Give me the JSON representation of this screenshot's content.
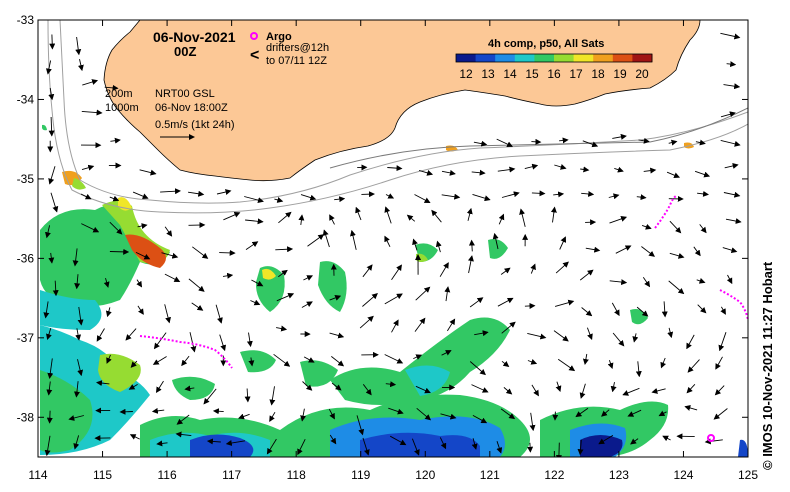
{
  "title": {
    "date": "06-Nov-2021",
    "time": "00Z"
  },
  "legend": {
    "argo_label": "Argo",
    "argo_color": "#ff00ff",
    "drifters_line1": "drifters@12h",
    "drifters_line2": "to 07/11 12Z",
    "drifter_color": "#ff00ff"
  },
  "colorbar": {
    "title": "4h comp, p50, All Sats",
    "ticks": [
      "12",
      "13",
      "14",
      "15",
      "16",
      "17",
      "18",
      "19",
      "20"
    ],
    "colors": [
      "#0a1a8c",
      "#1446c8",
      "#1e8ce6",
      "#1ec8c8",
      "#32c864",
      "#96dc32",
      "#f0e628",
      "#f0a01e",
      "#dc5014",
      "#a01414"
    ]
  },
  "contours": {
    "shallow": "200m",
    "deep": "1000m"
  },
  "product": {
    "name": "NRT00 GSL",
    "datetime": "06-Nov 18:00Z",
    "scale": "0.5m/s (1kt 24h)"
  },
  "axes": {
    "lon_ticks": [
      "114",
      "115",
      "116",
      "117",
      "118",
      "119",
      "120",
      "121",
      "122",
      "123",
      "124",
      "125"
    ],
    "lat_ticks": [
      "-33",
      "-34",
      "-35",
      "-36",
      "-37",
      "-38"
    ],
    "lon_range": [
      114,
      125
    ],
    "lat_range": [
      -33,
      -38.5
    ]
  },
  "colors": {
    "land": "#fcc896",
    "bathymetry": "#a0a0a0",
    "arrows": "#000000"
  },
  "credit": "© IMOS 10-Nov-2021 11:27 Hobart"
}
